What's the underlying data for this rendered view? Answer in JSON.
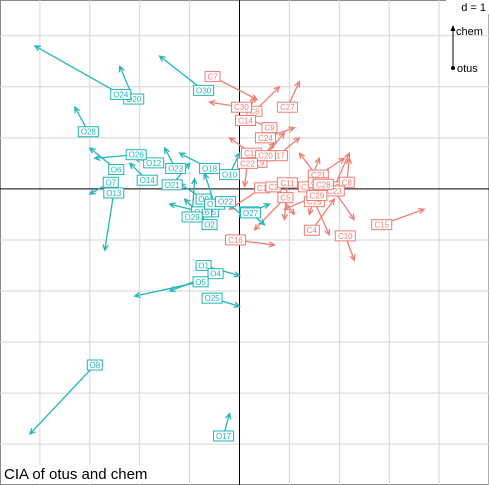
{
  "chart_data": {
    "type": "scatter",
    "title": "CIA of otus and chem",
    "scale_label": "d = 1",
    "legend": {
      "placement": "top-right",
      "items": [
        "chem",
        "otus"
      ]
    },
    "grid": true,
    "colors": {
      "chem": "#f07c72",
      "otus": "#20b6b8",
      "grid": "#d5d5d5",
      "axis": "#000000"
    },
    "xlim": [
      -4.8,
      5.0
    ],
    "ylim": [
      -5.8,
      3.7
    ],
    "series": [
      {
        "name": "chem",
        "points": [
          {
            "label": "C1",
            "x": 0.45,
            "y": 0.02,
            "end_x": -0.2,
            "end_y": -0.4
          },
          {
            "label": "C2",
            "x": 0.68,
            "y": 0.04,
            "end_x": 1.1,
            "end_y": -0.5
          },
          {
            "label": "C3",
            "x": 1.9,
            "y": 0.04,
            "end_x": 2.2,
            "end_y": 0.7
          },
          {
            "label": "C4",
            "x": 1.45,
            "y": -0.81,
            "end_x": 1.9,
            "end_y": -0.2
          },
          {
            "label": "C5",
            "x": 0.92,
            "y": -0.17,
            "end_x": 0.3,
            "end_y": -0.8
          },
          {
            "label": "C6",
            "x": 0.3,
            "y": 1.52,
            "end_x": 0.8,
            "end_y": 2.0
          },
          {
            "label": "C7",
            "x": -0.54,
            "y": 2.2,
            "end_x": 0.35,
            "end_y": 1.75
          },
          {
            "label": "C8",
            "x": 2.15,
            "y": 0.13,
            "end_x": 2.2,
            "end_y": 0.6
          },
          {
            "label": "C9",
            "x": 0.6,
            "y": 1.2,
            "end_x": 0.1,
            "end_y": 1.4
          },
          {
            "label": "C10",
            "x": 2.12,
            "y": -0.92,
            "end_x": 2.3,
            "end_y": -1.4
          },
          {
            "label": "C11",
            "x": 0.96,
            "y": 0.12,
            "end_x": 0.9,
            "end_y": -0.6
          },
          {
            "label": "C12",
            "x": 0.24,
            "y": 0.7,
            "end_x": -0.2,
            "end_y": 1.0
          },
          {
            "label": "C13",
            "x": 1.38,
            "y": 0.04,
            "end_x": 1.6,
            "end_y": 0.6
          },
          {
            "label": "C14",
            "x": 0.12,
            "y": 1.34,
            "end_x": 0.3,
            "end_y": 1.8
          },
          {
            "label": "C15",
            "x": 2.85,
            "y": -0.7,
            "end_x": 3.7,
            "end_y": -0.4
          },
          {
            "label": "C16",
            "x": -0.08,
            "y": -1.0,
            "end_x": 0.7,
            "end_y": -1.1
          },
          {
            "label": "C17",
            "x": 0.76,
            "y": 0.65,
            "end_x": 1.2,
            "end_y": 1.0
          },
          {
            "label": "C19",
            "x": 0.35,
            "y": 0.52,
            "end_x": 0.7,
            "end_y": 0.9
          },
          {
            "label": "C20",
            "x": 0.52,
            "y": 0.65,
            "end_x": 0.9,
            "end_y": 1.1
          },
          {
            "label": "C21",
            "x": 1.58,
            "y": 0.27,
            "end_x": 2.1,
            "end_y": 0.6
          },
          {
            "label": "C22",
            "x": 0.16,
            "y": 0.5,
            "end_x": 0.1,
            "end_y": 0.05
          },
          {
            "label": "C23",
            "x": 1.9,
            "y": -0.04,
            "end_x": 2.3,
            "end_y": -0.6
          },
          {
            "label": "C24",
            "x": 0.52,
            "y": 1.0,
            "end_x": 1.1,
            "end_y": 1.2
          },
          {
            "label": "C25",
            "x": 1.5,
            "y": -0.25,
            "end_x": 1.8,
            "end_y": -0.9
          },
          {
            "label": "C26",
            "x": 1.58,
            "y": 0.12,
            "end_x": 1.4,
            "end_y": -0.5
          },
          {
            "label": "C27",
            "x": 0.96,
            "y": 1.6,
            "end_x": 1.2,
            "end_y": 2.1
          },
          {
            "label": "C28",
            "x": 1.68,
            "y": 0.09,
            "end_x": 1.2,
            "end_y": 0.7
          },
          {
            "label": "C29",
            "x": 1.55,
            "y": -0.13,
            "end_x": 0.9,
            "end_y": -0.4
          },
          {
            "label": "C30",
            "x": 0.04,
            "y": 1.6,
            "end_x": -0.6,
            "end_y": 1.7
          }
        ]
      },
      {
        "name": "otus",
        "points": [
          {
            "label": "O1",
            "x": -0.72,
            "y": -1.5,
            "end_x": 0.0,
            "end_y": -1.7
          },
          {
            "label": "O2",
            "x": -0.6,
            "y": -0.7,
            "end_x": -1.1,
            "end_y": -0.2
          },
          {
            "label": "O4",
            "x": -0.48,
            "y": -1.66,
            "end_x": -1.4,
            "end_y": -2.0
          },
          {
            "label": "O5",
            "x": -0.78,
            "y": -1.82,
            "end_x": -2.1,
            "end_y": -2.1
          },
          {
            "label": "O6",
            "x": -2.47,
            "y": 0.38,
            "end_x": -3.0,
            "end_y": 0.8
          },
          {
            "label": "O7",
            "x": -2.58,
            "y": 0.13,
            "end_x": -3.0,
            "end_y": -0.1
          },
          {
            "label": "O8",
            "x": -2.9,
            "y": -3.45,
            "end_x": -4.2,
            "end_y": -4.8
          },
          {
            "label": "O9",
            "x": -0.72,
            "y": -0.2,
            "end_x": -1.2,
            "end_y": 0.1
          },
          {
            "label": "O10",
            "x": -0.2,
            "y": 0.28,
            "end_x": 0.0,
            "end_y": 0.7
          },
          {
            "label": "O11",
            "x": 0.2,
            "y": -0.45,
            "end_x": 0.6,
            "end_y": -0.3
          },
          {
            "label": "O12",
            "x": -1.72,
            "y": 0.51,
            "end_x": -2.1,
            "end_y": 0.6
          },
          {
            "label": "O13",
            "x": -2.52,
            "y": -0.08,
            "end_x": -2.7,
            "end_y": -1.2
          },
          {
            "label": "O14",
            "x": -1.85,
            "y": 0.17,
            "end_x": -2.2,
            "end_y": 0.5
          },
          {
            "label": "O15",
            "x": -0.62,
            "y": -0.45,
            "end_x": -0.5,
            "end_y": -0.2
          },
          {
            "label": "O16",
            "x": -0.76,
            "y": -0.45,
            "end_x": -1.4,
            "end_y": -0.3
          },
          {
            "label": "O17",
            "x": -0.32,
            "y": -4.84,
            "end_x": -0.2,
            "end_y": -4.4
          },
          {
            "label": "O18",
            "x": -0.6,
            "y": 0.4,
            "end_x": -1.2,
            "end_y": 0.7
          },
          {
            "label": "O19",
            "x": -0.5,
            "y": -0.3,
            "end_x": -0.7,
            "end_y": 0.3
          },
          {
            "label": "O20",
            "x": -2.12,
            "y": 1.76,
            "end_x": -2.4,
            "end_y": 2.4
          },
          {
            "label": "O21",
            "x": -1.35,
            "y": 0.08,
            "end_x": -1.0,
            "end_y": 0.5
          },
          {
            "label": "O22",
            "x": -0.28,
            "y": -0.25,
            "end_x": 0.1,
            "end_y": -0.55
          },
          {
            "label": "O23",
            "x": -1.28,
            "y": 0.4,
            "end_x": -1.5,
            "end_y": 0.8
          },
          {
            "label": "O24",
            "x": -2.38,
            "y": 1.85,
            "end_x": -4.1,
            "end_y": 2.8
          },
          {
            "label": "O25",
            "x": -0.55,
            "y": -2.14,
            "end_x": 0.0,
            "end_y": -2.3
          },
          {
            "label": "O26",
            "x": -2.07,
            "y": 0.67,
            "end_x": -2.9,
            "end_y": 0.6
          },
          {
            "label": "O27",
            "x": 0.22,
            "y": -0.47,
            "end_x": 0.5,
            "end_y": -0.7
          },
          {
            "label": "O28",
            "x": -3.03,
            "y": 1.12,
            "end_x": -3.3,
            "end_y": 1.6
          },
          {
            "label": "O29",
            "x": -0.95,
            "y": -0.55,
            "end_x": -0.9,
            "end_y": 0.2
          },
          {
            "label": "O30",
            "x": -0.72,
            "y": 1.93,
            "end_x": -1.6,
            "end_y": 2.6
          }
        ]
      }
    ]
  }
}
